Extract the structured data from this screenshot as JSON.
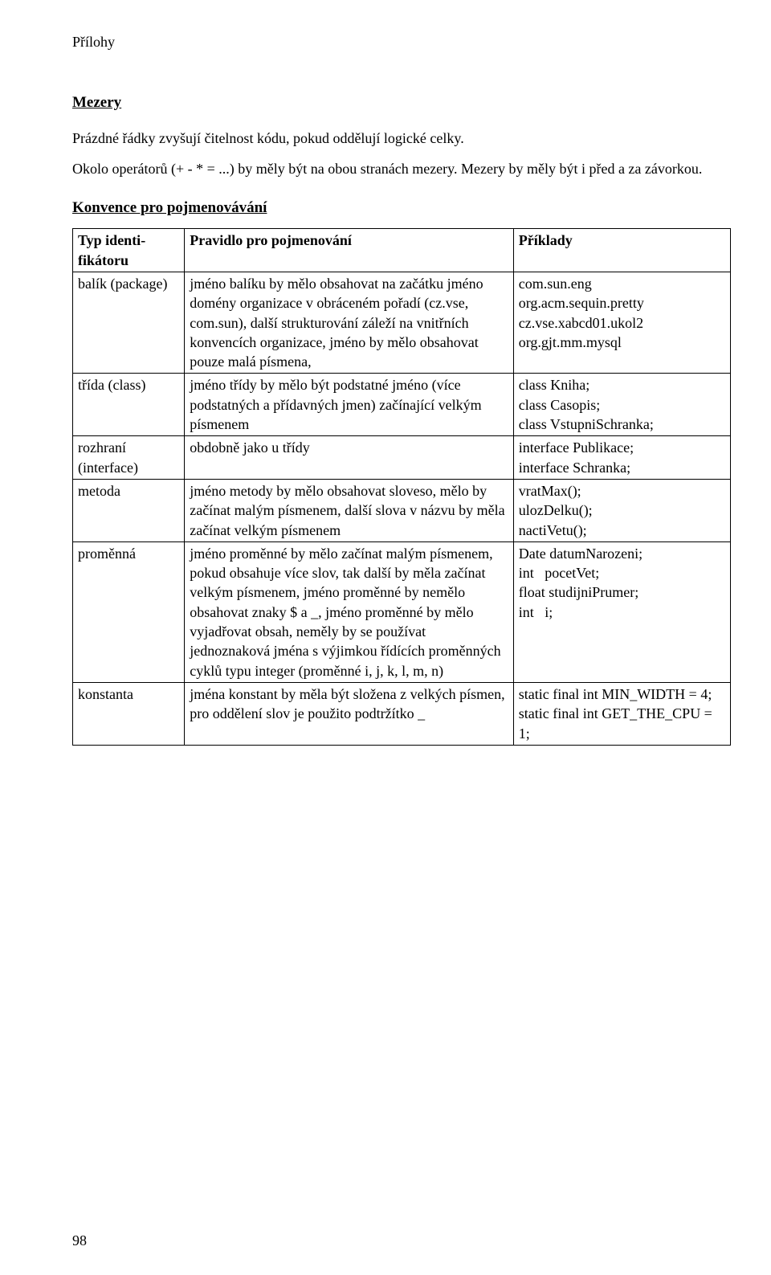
{
  "page": {
    "header": "Přílohy",
    "page_number": "98"
  },
  "sections": {
    "mezery": {
      "title": "Mezery",
      "p1": "Prázdné řádky zvyšují čitelnost kódu, pokud oddělují logické celky.",
      "p2": "Okolo operátorů (+ - * = ...) by měly být na obou stranách mezery. Mezery by měly být i před a za závorkou."
    },
    "konvence": {
      "title": "Konvence pro pojmenovávání",
      "table": {
        "headers": {
          "type": "Typ identi-fikátoru",
          "rule": "Pravidlo pro pojmenování",
          "examples": "Příklady"
        },
        "rows": [
          {
            "type": "balík (package)",
            "rule": "jméno balíku by mělo obsahovat na začátku jméno domény organizace v obráceném pořadí (cz.vse, com.sun), další strukturování záleží na vnitřních konvencích organizace, jméno by mělo obsahovat pouze malá písmena,",
            "examples": "com.sun.eng\norg.acm.sequin.pretty\ncz.vse.xabcd01.ukol2\norg.gjt.mm.mysql"
          },
          {
            "type": "třída (class)",
            "rule": "jméno třídy by mělo být podstatné jméno (více podstatných a přídavných jmen) začínající velkým písmenem",
            "examples": "class Kniha;\nclass Casopis;\nclass VstupniSchranka;"
          },
          {
            "type": "rozhraní (interface)",
            "rule": "obdobně jako u třídy",
            "examples": "interface Publikace;\ninterface Schranka;"
          },
          {
            "type": "metoda",
            "rule": "jméno metody by mělo obsahovat sloveso, mělo by začínat malým písmenem, další slova v názvu by měla začínat velkým písmenem",
            "examples": "vratMax();\nulozDelku();\nnactiVetu();"
          },
          {
            "type": "proměnná",
            "rule": "jméno proměnné by mělo začínat malým písmenem, pokud obsahuje více slov, tak další by měla začínat velkým písmenem, jméno proměnné by nemělo obsahovat znaky $ a _, jméno proměnné by mělo vyjadřovat obsah, neměly by se používat jednoznaková jména s výjimkou řídících proměnných cyklů typu integer (proměnné i, j, k, l, m, n)",
            "examples": "Date datumNarozeni;\nint   pocetVet;\nfloat studijniPrumer;\nint   i;"
          },
          {
            "type": "konstanta",
            "rule": "jména konstant by měla být složena z velkých písmen, pro oddělení slov je použito podtržítko _",
            "examples": "static final int MIN_WIDTH = 4;\nstatic final int GET_THE_CPU = 1;"
          }
        ]
      }
    }
  }
}
